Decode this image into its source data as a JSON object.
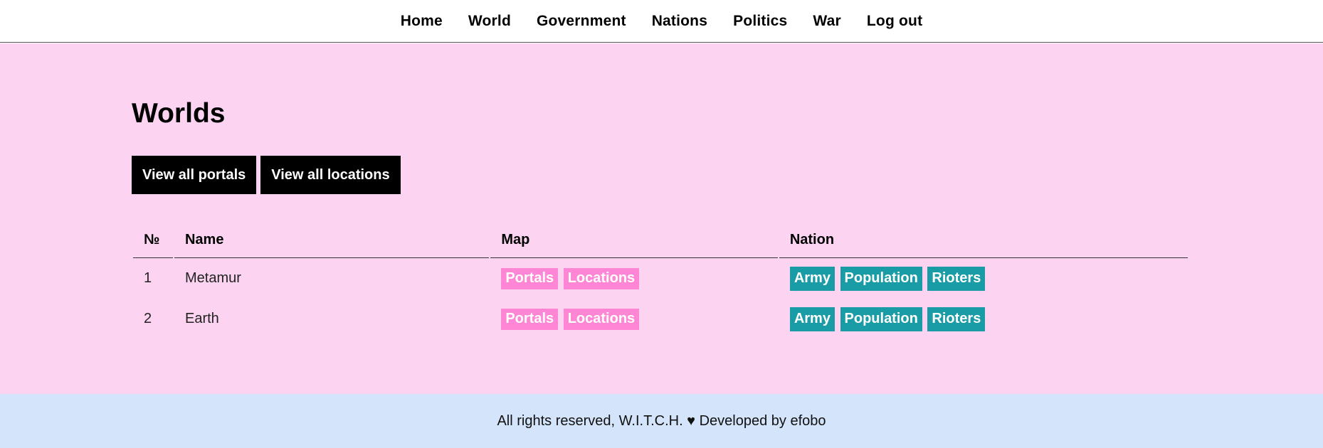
{
  "nav": {
    "items": [
      "Home",
      "World",
      "Government",
      "Nations",
      "Politics",
      "War",
      "Log out"
    ]
  },
  "page": {
    "title": "Worlds",
    "buttons": {
      "portals": "View all portals",
      "locations": "View all locations"
    }
  },
  "table": {
    "headers": {
      "num": "№",
      "name": "Name",
      "map": "Map",
      "nation": "Nation"
    },
    "rows": [
      {
        "num": "1",
        "name": "Metamur",
        "map_links": [
          "Portals",
          "Locations"
        ],
        "nation_links": [
          "Army",
          "Population",
          "Rioters"
        ]
      },
      {
        "num": "2",
        "name": "Earth",
        "map_links": [
          "Portals",
          "Locations"
        ],
        "nation_links": [
          "Army",
          "Population",
          "Rioters"
        ]
      }
    ]
  },
  "footer": {
    "text": "All rights reserved, W.I.T.C.H. ♥ Developed by efobo"
  },
  "colors": {
    "main_bg": "#fcd4f2",
    "footer_bg": "#d4e4fa",
    "map_tag": "#ff85d5",
    "nation_tag": "#1a9ca6"
  }
}
